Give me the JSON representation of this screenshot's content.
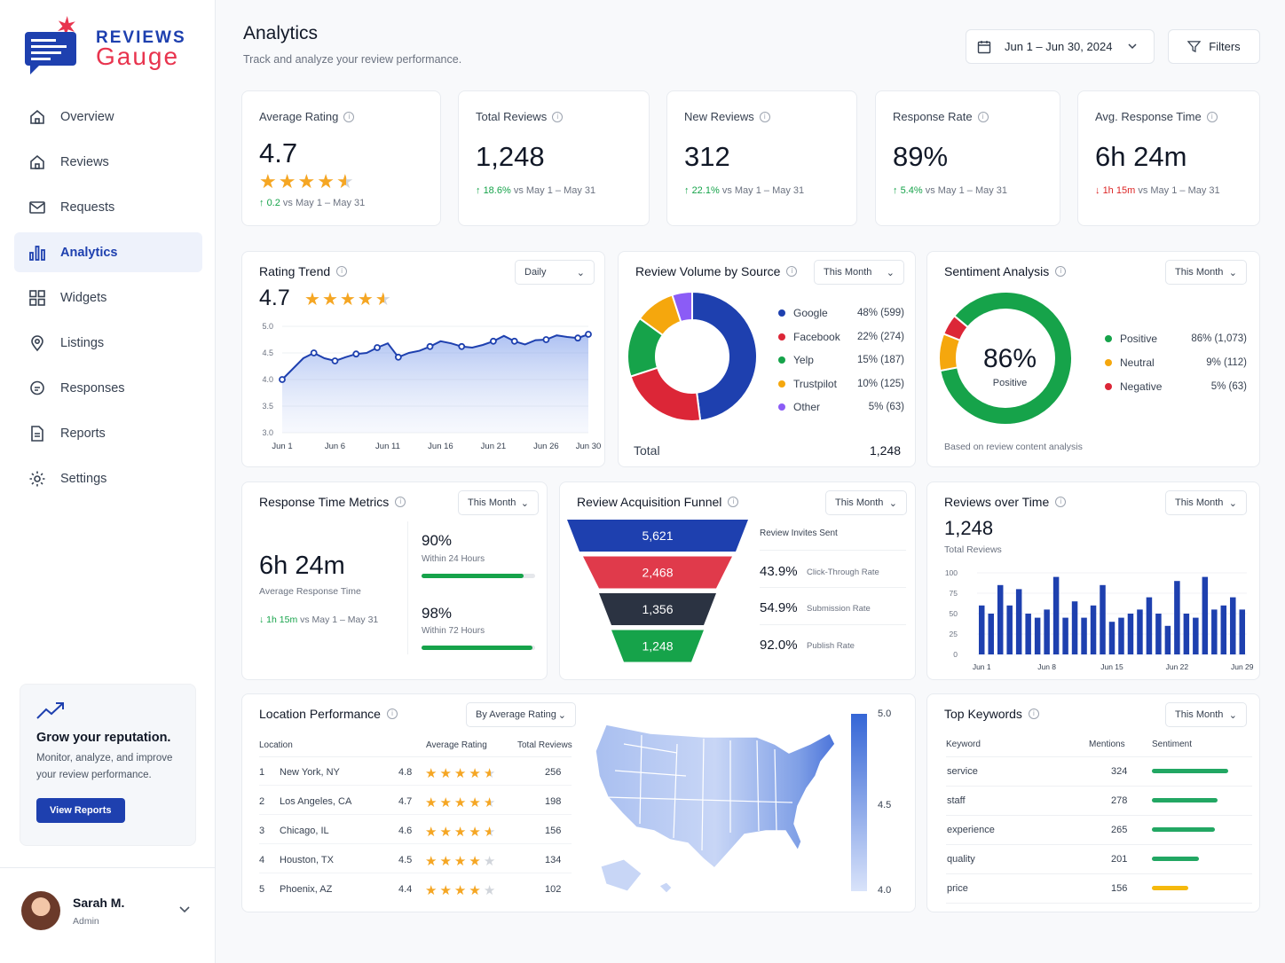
{
  "brand": {
    "line1": "REVIEWS",
    "line2": "Gauge"
  },
  "nav": [
    {
      "label": "Overview",
      "icon": "home-icon"
    },
    {
      "label": "Reviews",
      "icon": "home-icon"
    },
    {
      "label": "Requests",
      "icon": "mail-icon"
    },
    {
      "label": "Analytics",
      "icon": "bar-chart-icon",
      "active": true
    },
    {
      "label": "Widgets",
      "icon": "grid-icon"
    },
    {
      "label": "Listings",
      "icon": "location-pin-icon"
    },
    {
      "label": "Responses",
      "icon": "chat-icon"
    },
    {
      "label": "Reports",
      "icon": "document-icon"
    },
    {
      "label": "Settings",
      "icon": "gear-icon"
    }
  ],
  "promo": {
    "title": "Grow your reputation.",
    "subtitle": "Monitor, analyze, and improve your review performance.",
    "button": "View Reports"
  },
  "user": {
    "name": "Sarah M.",
    "role": "Admin"
  },
  "header": {
    "title": "Analytics",
    "subtitle": "Track and analyze your review performance.",
    "date_range": "Jun 1 – Jun 30, 2024",
    "filters": "Filters"
  },
  "kpis": [
    {
      "label": "Average Rating",
      "value": "4.7",
      "delta": "0.2",
      "compare": "vs May 1 – May 31",
      "direction": "up",
      "stars": 4.5
    },
    {
      "label": "Total Reviews",
      "value": "1,248",
      "delta": "18.6%",
      "compare": "vs May 1 – May 31",
      "direction": "up"
    },
    {
      "label": "New Reviews",
      "value": "312",
      "delta": "22.1%",
      "compare": "vs May 1 – May 31",
      "direction": "up"
    },
    {
      "label": "Response Rate",
      "value": "89%",
      "delta": "5.4%",
      "compare": "vs May 1 – May 31",
      "direction": "up"
    },
    {
      "label": "Avg. Response Time",
      "value": "6h 24m",
      "delta": "1h 15m",
      "compare": "vs May 1 – May 31",
      "direction": "down"
    }
  ],
  "rating_trend": {
    "title": "Rating Trend",
    "dropdown": "Daily",
    "value": "4.7",
    "chart_data": {
      "type": "line",
      "x": [
        "Jun 1",
        "Jun 2",
        "Jun 3",
        "Jun 4",
        "Jun 5",
        "Jun 6",
        "Jun 7",
        "Jun 8",
        "Jun 9",
        "Jun 10",
        "Jun 11",
        "Jun 12",
        "Jun 13",
        "Jun 14",
        "Jun 15",
        "Jun 16",
        "Jun 17",
        "Jun 18",
        "Jun 19",
        "Jun 20",
        "Jun 21",
        "Jun 22",
        "Jun 23",
        "Jun 24",
        "Jun 25",
        "Jun 26",
        "Jun 27",
        "Jun 28",
        "Jun 29",
        "Jun 30"
      ],
      "values": [
        4.0,
        4.2,
        4.4,
        4.5,
        4.4,
        4.35,
        4.42,
        4.48,
        4.5,
        4.6,
        4.68,
        4.42,
        4.5,
        4.54,
        4.62,
        4.72,
        4.68,
        4.62,
        4.6,
        4.65,
        4.72,
        4.82,
        4.72,
        4.66,
        4.74,
        4.75,
        4.83,
        4.8,
        4.78,
        4.85
      ],
      "xticks": [
        "Jun 1",
        "Jun 6",
        "Jun 11",
        "Jun 16",
        "Jun 21",
        "Jun 26",
        "Jun 30"
      ],
      "yticks": [
        "5.0",
        "4.5",
        "4.0",
        "3.5",
        "3.0"
      ],
      "ylim": [
        3.0,
        5.0
      ]
    }
  },
  "volume": {
    "title": "Review Volume by Source",
    "dropdown": "This Month",
    "total_label": "Total",
    "total": "1,248",
    "chart_data": {
      "type": "pie",
      "series": [
        {
          "name": "Google",
          "percent": 48,
          "count": 599,
          "label": "48% (599)",
          "color": "#1e40af"
        },
        {
          "name": "Facebook",
          "percent": 22,
          "count": 274,
          "label": "22% (274)",
          "color": "#dc2637"
        },
        {
          "name": "Yelp",
          "percent": 15,
          "count": 187,
          "label": "15% (187)",
          "color": "#16a34a"
        },
        {
          "name": "Trustpilot",
          "percent": 10,
          "count": 125,
          "label": "10% (125)",
          "color": "#f5a70d"
        },
        {
          "name": "Other",
          "percent": 5,
          "count": 63,
          "label": "5% (63)",
          "color": "#8b5cf6"
        }
      ]
    }
  },
  "sentiment": {
    "title": "Sentiment Analysis",
    "dropdown": "This Month",
    "center_value": "86%",
    "center_label": "Positive",
    "footnote": "Based on review content analysis",
    "chart_data": {
      "type": "pie",
      "series": [
        {
          "name": "Positive",
          "percent": 86,
          "label": "86% (1,073)",
          "color": "#16a34a"
        },
        {
          "name": "Neutral",
          "percent": 9,
          "label": "9% (112)",
          "color": "#f5a70d"
        },
        {
          "name": "Negative",
          "percent": 5,
          "label": "5% (63)",
          "color": "#dc2637"
        }
      ]
    }
  },
  "response_time": {
    "title": "Response Time Metrics",
    "dropdown": "This Month",
    "value": "6h 24m",
    "value_label": "Average Response Time",
    "delta": "1h 15m",
    "compare": "vs May 1 – May 31",
    "bars": [
      {
        "value": "90%",
        "label": "Within 24 Hours",
        "fraction": 0.9
      },
      {
        "value": "98%",
        "label": "Within 72 Hours",
        "fraction": 0.98
      }
    ]
  },
  "funnel": {
    "title": "Review Acquisition Funnel",
    "dropdown": "This Month",
    "stages": [
      {
        "value": "5,621",
        "color": "#1e40af"
      },
      {
        "value": "2,468",
        "color": "#e03a4b"
      },
      {
        "value": "1,356",
        "color": "#2b3342"
      },
      {
        "value": "1,248",
        "color": "#16a34a"
      }
    ],
    "metrics": [
      {
        "value": "",
        "label": "Review Invites Sent"
      },
      {
        "value": "43.9%",
        "label": "Click-Through Rate"
      },
      {
        "value": "54.9%",
        "label": "Submission Rate"
      },
      {
        "value": "92.0%",
        "label": "Publish Rate"
      }
    ]
  },
  "reviews_over_time": {
    "title": "Reviews over Time",
    "dropdown": "This Month",
    "value": "1,248",
    "value_label": "Total Reviews",
    "chart_data": {
      "type": "bar",
      "categories": [
        "Jun 1",
        "Jun 2",
        "Jun 3",
        "Jun 4",
        "Jun 5",
        "Jun 6",
        "Jun 7",
        "Jun 8",
        "Jun 9",
        "Jun 10",
        "Jun 11",
        "Jun 12",
        "Jun 13",
        "Jun 14",
        "Jun 15",
        "Jun 16",
        "Jun 17",
        "Jun 18",
        "Jun 19",
        "Jun 20",
        "Jun 21",
        "Jun 22",
        "Jun 23",
        "Jun 24",
        "Jun 25",
        "Jun 26",
        "Jun 27",
        "Jun 28",
        "Jun 29"
      ],
      "values": [
        60,
        50,
        85,
        60,
        80,
        50,
        45,
        55,
        95,
        45,
        65,
        45,
        60,
        85,
        40,
        45,
        50,
        55,
        70,
        50,
        35,
        90,
        50,
        45,
        95,
        55,
        60,
        70,
        55
      ],
      "xticks": [
        "Jun 1",
        "Jun 8",
        "Jun 15",
        "Jun 22",
        "Jun 29"
      ],
      "yticks": [
        "100",
        "75",
        "50",
        "25",
        "0"
      ],
      "ylim": [
        0,
        100
      ]
    }
  },
  "location": {
    "title": "Location Performance",
    "dropdown": "By Average Rating",
    "headers": {
      "location": "Location",
      "rating": "Average Rating",
      "total": "Total Reviews"
    },
    "rows": [
      {
        "rank": "1",
        "name": "New York, NY",
        "rating": "4.8",
        "stars": 4.5,
        "total": "256"
      },
      {
        "rank": "2",
        "name": "Los Angeles, CA",
        "rating": "4.7",
        "stars": 4.5,
        "total": "198"
      },
      {
        "rank": "3",
        "name": "Chicago, IL",
        "rating": "4.6",
        "stars": 4.5,
        "total": "156"
      },
      {
        "rank": "4",
        "name": "Houston, TX",
        "rating": "4.5",
        "stars": 4,
        "total": "134"
      },
      {
        "rank": "5",
        "name": "Phoenix, AZ",
        "rating": "4.4",
        "stars": 4,
        "total": "102"
      }
    ],
    "scale": {
      "max": "5.0",
      "mid": "4.5",
      "min": "4.0"
    }
  },
  "keywords": {
    "title": "Top Keywords",
    "dropdown": "This Month",
    "headers": {
      "keyword": "Keyword",
      "mentions": "Mentions",
      "sentiment": "Sentiment"
    },
    "rows": [
      {
        "keyword": "service",
        "mentions": "324",
        "fraction": 1.0,
        "color": "#22a763"
      },
      {
        "keyword": "staff",
        "mentions": "278",
        "fraction": 0.86,
        "color": "#22a763"
      },
      {
        "keyword": "experience",
        "mentions": "265",
        "fraction": 0.82,
        "color": "#22a763"
      },
      {
        "keyword": "quality",
        "mentions": "201",
        "fraction": 0.62,
        "color": "#22a763"
      },
      {
        "keyword": "price",
        "mentions": "156",
        "fraction": 0.48,
        "color": "#f5b90d"
      }
    ]
  }
}
